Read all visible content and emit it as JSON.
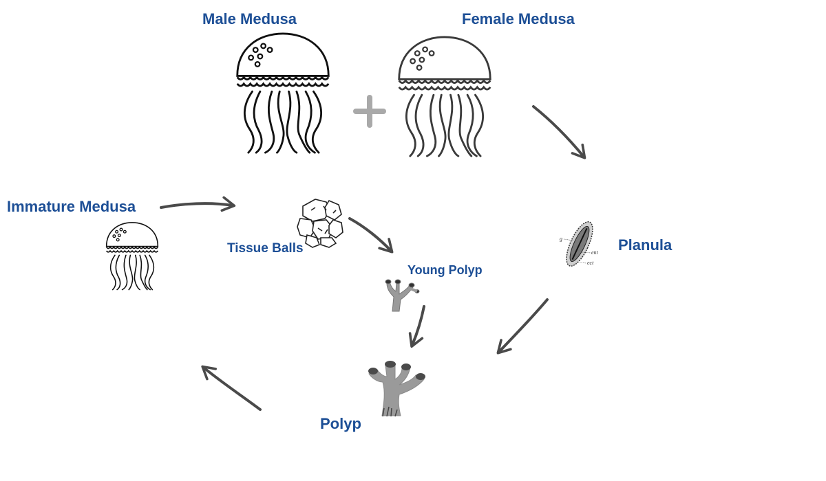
{
  "stages": {
    "male_medusa": "Male Medusa",
    "female_medusa": "Female Medusa",
    "planula": "Planula",
    "polyp": "Polyp",
    "young_polyp": "Young Polyp",
    "tissue_balls": "Tissue Balls",
    "immature_medusa": "Immature Medusa"
  },
  "planula_annotations": {
    "g": "g",
    "ent": "ent",
    "ect": "ect"
  },
  "colors": {
    "label": "#1d4f96",
    "arrow": "#4a4a4a",
    "plus": "#a9a9a9",
    "polyp_fill": "#9a9a9a",
    "ink": "#111111"
  },
  "icons": {
    "plus": "plus-icon",
    "jellyfish": "jellyfish-icon",
    "tissue_balls": "cell-cluster-icon",
    "planula": "planula-larva-icon",
    "polyp": "coral-polyp-icon"
  }
}
